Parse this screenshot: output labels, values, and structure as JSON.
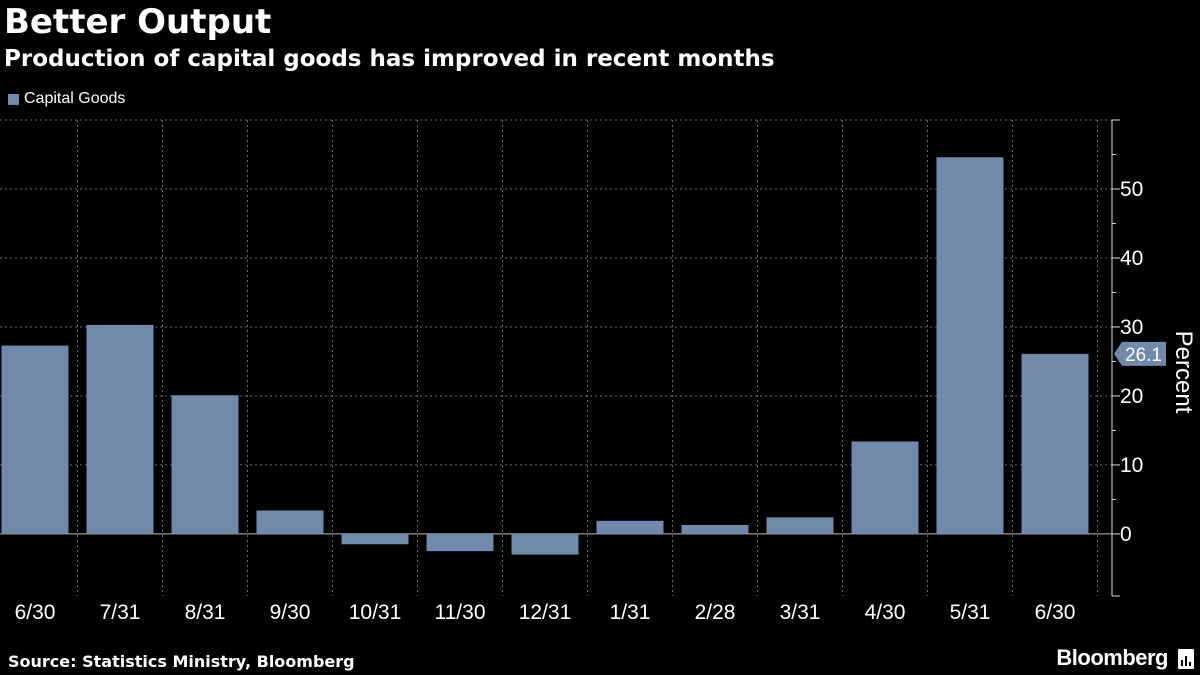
{
  "header": {
    "title": "Better Output",
    "subtitle": "Production of capital goods has improved in recent months"
  },
  "footer": {
    "source": "Source: Statistics Ministry, Bloomberg",
    "brand": "Bloomberg"
  },
  "icons": {
    "brand_icon": "bloomberg-terminal-icon"
  },
  "colors": {
    "bar": "#7189ab",
    "grid": "#6b6b6b",
    "background": "#000000"
  },
  "chart_data": {
    "type": "bar",
    "categories": [
      "6/30",
      "7/31",
      "8/31",
      "9/30",
      "10/31",
      "11/30",
      "12/31",
      "1/31",
      "2/28",
      "3/31",
      "4/30",
      "5/31",
      "6/30"
    ],
    "series": [
      {
        "name": "Capital Goods",
        "values": [
          27.3,
          30.3,
          20.1,
          3.4,
          -1.5,
          -2.5,
          -3.0,
          1.9,
          1.3,
          2.4,
          13.4,
          54.6,
          26.1
        ]
      }
    ],
    "ylabel": "Percent",
    "ylim": [
      -9,
      60
    ],
    "yticks": [
      0,
      10,
      20,
      30,
      40,
      50
    ],
    "ytick_labels": [
      "0",
      "10",
      "20",
      "30",
      "40",
      "50"
    ],
    "grid": true,
    "legend_position": "top-left",
    "y_axis_side": "right",
    "annotation": {
      "label": "26.1",
      "value": 26.1
    }
  }
}
